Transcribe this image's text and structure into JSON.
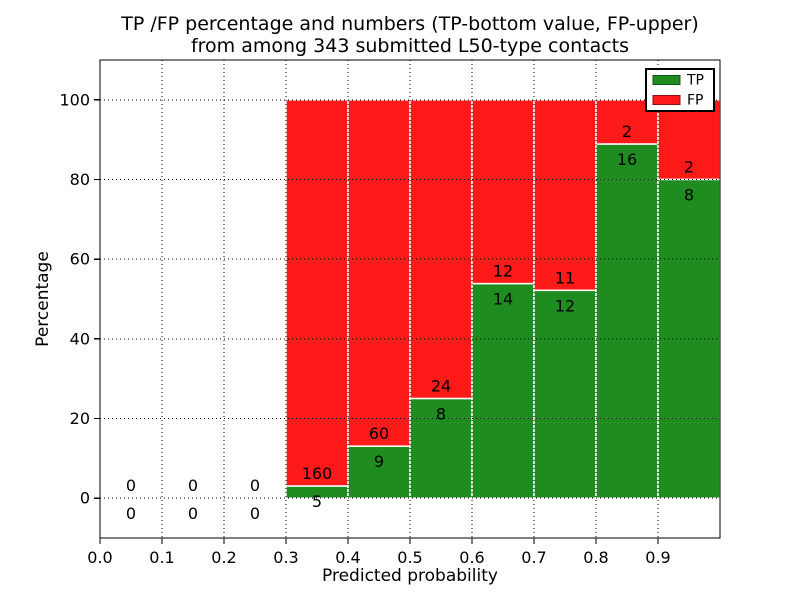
{
  "chart_data": {
    "type": "bar",
    "stacked": true,
    "percent_scale": true,
    "title_line1": "TP /FP percentage and numbers (TP-bottom value, FP-upper)",
    "title_line2": "from among 343 submitted L50-type contacts",
    "xlabel": "Predicted probability",
    "ylabel": "Percentage",
    "xlim": [
      0.0,
      1.0
    ],
    "ylim": [
      -10,
      110
    ],
    "xticks": [
      "0.0",
      "0.1",
      "0.2",
      "0.3",
      "0.4",
      "0.5",
      "0.6",
      "0.7",
      "0.8",
      "0.9"
    ],
    "yticks": [
      0,
      20,
      40,
      60,
      80,
      100
    ],
    "grid": true,
    "legend_position": "upper-right",
    "legend": [
      {
        "label": "TP",
        "color": "#1e8c1e"
      },
      {
        "label": "FP",
        "color": "#ff1a1a"
      }
    ],
    "colors": {
      "tp": "#1e8c1e",
      "fp": "#ff1a1a",
      "bar_edge": "#ffffff",
      "grid": "#000000",
      "frame": "#000000"
    },
    "bins": [
      {
        "x0": 0.0,
        "x1": 0.1,
        "tp": 0,
        "fp": 0
      },
      {
        "x0": 0.1,
        "x1": 0.2,
        "tp": 0,
        "fp": 0
      },
      {
        "x0": 0.2,
        "x1": 0.3,
        "tp": 0,
        "fp": 0
      },
      {
        "x0": 0.3,
        "x1": 0.4,
        "tp": 5,
        "fp": 160
      },
      {
        "x0": 0.4,
        "x1": 0.5,
        "tp": 9,
        "fp": 60
      },
      {
        "x0": 0.5,
        "x1": 0.6,
        "tp": 8,
        "fp": 24
      },
      {
        "x0": 0.6,
        "x1": 0.7,
        "tp": 14,
        "fp": 12
      },
      {
        "x0": 0.7,
        "x1": 0.8,
        "tp": 12,
        "fp": 11
      },
      {
        "x0": 0.8,
        "x1": 0.9,
        "tp": 16,
        "fp": 2
      },
      {
        "x0": 0.9,
        "x1": 1.0,
        "tp": 8,
        "fp": 2
      }
    ]
  }
}
